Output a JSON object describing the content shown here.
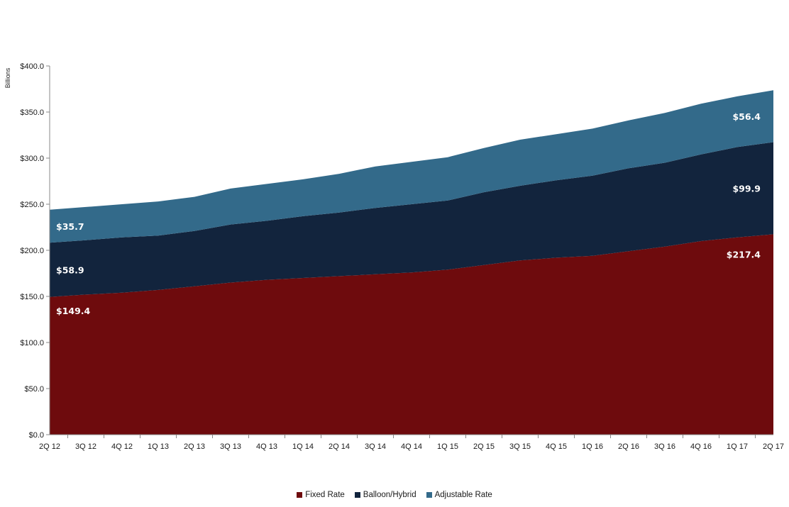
{
  "chart_data": {
    "type": "area",
    "stacked": true,
    "ylabel": "Billions",
    "ylim": [
      0,
      400
    ],
    "y_ticks": [
      "$0.0",
      "$50.0",
      "$100.0",
      "$150.0",
      "$200.0",
      "$250.0",
      "$300.0",
      "$350.0",
      "$400.0"
    ],
    "y_tick_values": [
      0,
      50,
      100,
      150,
      200,
      250,
      300,
      350,
      400
    ],
    "categories": [
      "2Q 12",
      "3Q 12",
      "4Q 12",
      "1Q 13",
      "2Q 13",
      "3Q 13",
      "4Q 13",
      "1Q 14",
      "2Q 14",
      "3Q 14",
      "4Q 14",
      "1Q 15",
      "2Q 15",
      "3Q 15",
      "4Q 15",
      "1Q 16",
      "2Q 16",
      "3Q 16",
      "4Q 16",
      "1Q 17",
      "2Q 17"
    ],
    "series": [
      {
        "name": "Fixed Rate",
        "color": "#6e0b0d",
        "values": [
          149.4,
          152,
          154,
          157,
          161,
          165,
          168,
          170,
          172,
          174,
          176,
          179,
          184,
          189,
          192,
          194,
          199,
          204,
          210,
          214,
          217.4
        ]
      },
      {
        "name": "Balloon/Hybrid",
        "color": "#12243d",
        "values": [
          58.9,
          59,
          60,
          59,
          60,
          63,
          64,
          67,
          69,
          72,
          74,
          75,
          79,
          81,
          84,
          87,
          90,
          91,
          94,
          98,
          99.9
        ]
      },
      {
        "name": "Adjustable Rate",
        "color": "#336a8a",
        "values": [
          35.7,
          36,
          36,
          37,
          37,
          39,
          40,
          40,
          42,
          45,
          46,
          47,
          48,
          50,
          50,
          51,
          52,
          54,
          55,
          55,
          56.4
        ]
      }
    ],
    "data_labels": [
      {
        "text": "$149.4",
        "series": 0,
        "category": "2Q 12"
      },
      {
        "text": "$58.9",
        "series": 1,
        "category": "2Q 12"
      },
      {
        "text": "$35.7",
        "series": 2,
        "category": "2Q 12"
      },
      {
        "text": "$217.4",
        "series": 0,
        "category": "2Q 17"
      },
      {
        "text": "$99.9",
        "series": 1,
        "category": "2Q 17"
      },
      {
        "text": "$56.4",
        "series": 2,
        "category": "2Q 17"
      }
    ],
    "legend": "bottom",
    "grid": false
  }
}
